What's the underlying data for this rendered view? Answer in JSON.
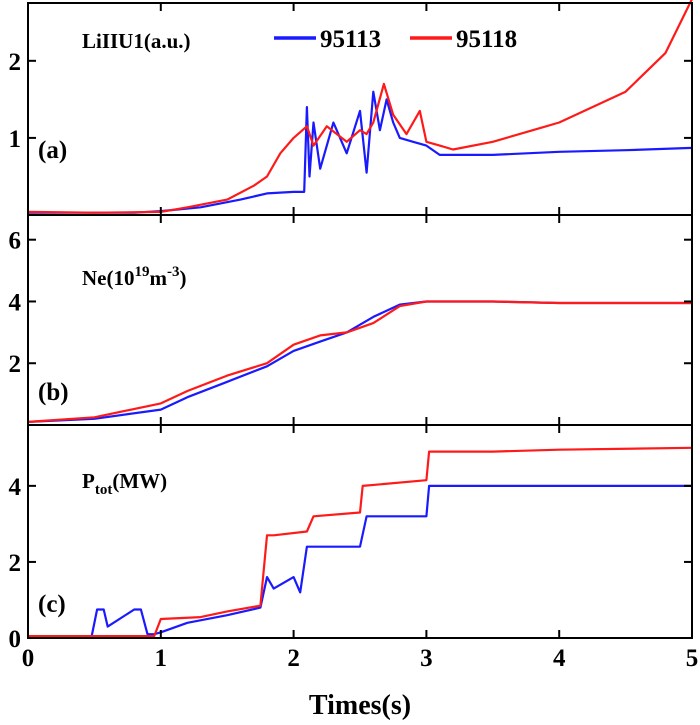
{
  "legend": {
    "series": [
      {
        "name": "95113",
        "color": "#1a1aff"
      },
      {
        "name": "95118",
        "color": "#ff1a1a"
      }
    ]
  },
  "x_axis": {
    "label": "Times(s)",
    "range": [
      0,
      5
    ],
    "ticks": [
      "0",
      "1",
      "2",
      "3",
      "4",
      "5"
    ]
  },
  "chart_data": [
    {
      "type": "line",
      "panel": "(a)",
      "title": "LiIIU1(a.u.)",
      "ylim": [
        0,
        2.75
      ],
      "yticks": [
        "1",
        "2"
      ],
      "series": [
        {
          "name": "95113",
          "color": "#1a1aff",
          "x": [
            0,
            0.5,
            0.8,
            1.0,
            1.3,
            1.6,
            1.8,
            2.0,
            2.08,
            2.1,
            2.12,
            2.15,
            2.2,
            2.3,
            2.4,
            2.5,
            2.55,
            2.6,
            2.65,
            2.7,
            2.75,
            2.8,
            2.9,
            3.0,
            3.1,
            3.5,
            4.0,
            4.5,
            5.0
          ],
          "y": [
            0.03,
            0.03,
            0.03,
            0.05,
            0.1,
            0.2,
            0.28,
            0.3,
            0.3,
            1.4,
            0.5,
            1.2,
            0.6,
            1.2,
            0.8,
            1.35,
            0.55,
            1.6,
            1.1,
            1.5,
            1.2,
            1.0,
            0.95,
            0.9,
            0.78,
            0.78,
            0.82,
            0.84,
            0.87
          ]
        },
        {
          "name": "95118",
          "color": "#ff1a1a",
          "x": [
            0,
            0.5,
            1.0,
            1.2,
            1.5,
            1.7,
            1.8,
            1.9,
            2.0,
            2.1,
            2.15,
            2.25,
            2.4,
            2.5,
            2.55,
            2.6,
            2.68,
            2.75,
            2.85,
            2.95,
            3.0,
            3.1,
            3.2,
            3.5,
            4.0,
            4.5,
            4.8,
            5.0
          ],
          "y": [
            0.04,
            0.03,
            0.04,
            0.1,
            0.2,
            0.38,
            0.5,
            0.8,
            1.0,
            1.15,
            0.9,
            1.15,
            0.95,
            1.1,
            1.05,
            1.2,
            1.7,
            1.3,
            1.05,
            1.35,
            0.95,
            0.9,
            0.85,
            0.95,
            1.2,
            1.6,
            2.1,
            2.8
          ]
        }
      ]
    },
    {
      "type": "line",
      "panel": "(b)",
      "title": "Ne(10^19 m^-3)",
      "ylim": [
        0,
        6.8
      ],
      "yticks": [
        "2",
        "4",
        "6"
      ],
      "series": [
        {
          "name": "95113",
          "color": "#1a1aff",
          "x": [
            0,
            0.5,
            1.0,
            1.2,
            1.5,
            1.8,
            2.0,
            2.2,
            2.4,
            2.6,
            2.8,
            3.0,
            3.5,
            4.0,
            4.5,
            5.0
          ],
          "y": [
            0.1,
            0.2,
            0.5,
            0.9,
            1.4,
            1.9,
            2.4,
            2.7,
            3.0,
            3.5,
            3.9,
            4.0,
            4.0,
            3.95,
            3.95,
            3.95
          ]
        },
        {
          "name": "95118",
          "color": "#ff1a1a",
          "x": [
            0,
            0.5,
            1.0,
            1.2,
            1.5,
            1.8,
            2.0,
            2.2,
            2.4,
            2.6,
            2.8,
            3.0,
            3.5,
            4.0,
            4.5,
            5.0
          ],
          "y": [
            0.1,
            0.25,
            0.7,
            1.1,
            1.6,
            2.0,
            2.6,
            2.9,
            3.0,
            3.3,
            3.85,
            4.0,
            4.0,
            3.95,
            3.95,
            3.95
          ]
        }
      ]
    },
    {
      "type": "line",
      "panel": "(c)",
      "title": "P_tot(MW)",
      "ylim": [
        0,
        5.6
      ],
      "yticks": [
        "0",
        "2",
        "4"
      ],
      "series": [
        {
          "name": "95113",
          "color": "#1a1aff",
          "x": [
            0,
            0.48,
            0.52,
            0.57,
            0.6,
            0.8,
            0.85,
            0.9,
            0.95,
            1.0,
            1.2,
            1.5,
            1.75,
            1.8,
            1.85,
            2.0,
            2.05,
            2.1,
            2.5,
            2.55,
            3.0,
            3.02,
            3.5,
            4.0,
            5.0
          ],
          "y": [
            0.05,
            0.05,
            0.75,
            0.75,
            0.3,
            0.75,
            0.75,
            0.1,
            0.1,
            0.15,
            0.4,
            0.6,
            0.8,
            1.6,
            1.3,
            1.6,
            1.2,
            2.4,
            2.4,
            3.2,
            3.2,
            4.0,
            4.0,
            4.0,
            4.0
          ]
        },
        {
          "name": "95118",
          "color": "#ff1a1a",
          "x": [
            0,
            0.95,
            1.0,
            1.3,
            1.5,
            1.75,
            1.8,
            1.85,
            2.1,
            2.15,
            2.5,
            2.52,
            3.0,
            3.02,
            3.5,
            4.0,
            5.0
          ],
          "y": [
            0.05,
            0.05,
            0.5,
            0.55,
            0.7,
            0.85,
            2.7,
            2.7,
            2.8,
            3.2,
            3.3,
            4.0,
            4.15,
            4.9,
            4.9,
            4.95,
            5.0
          ]
        }
      ]
    }
  ]
}
